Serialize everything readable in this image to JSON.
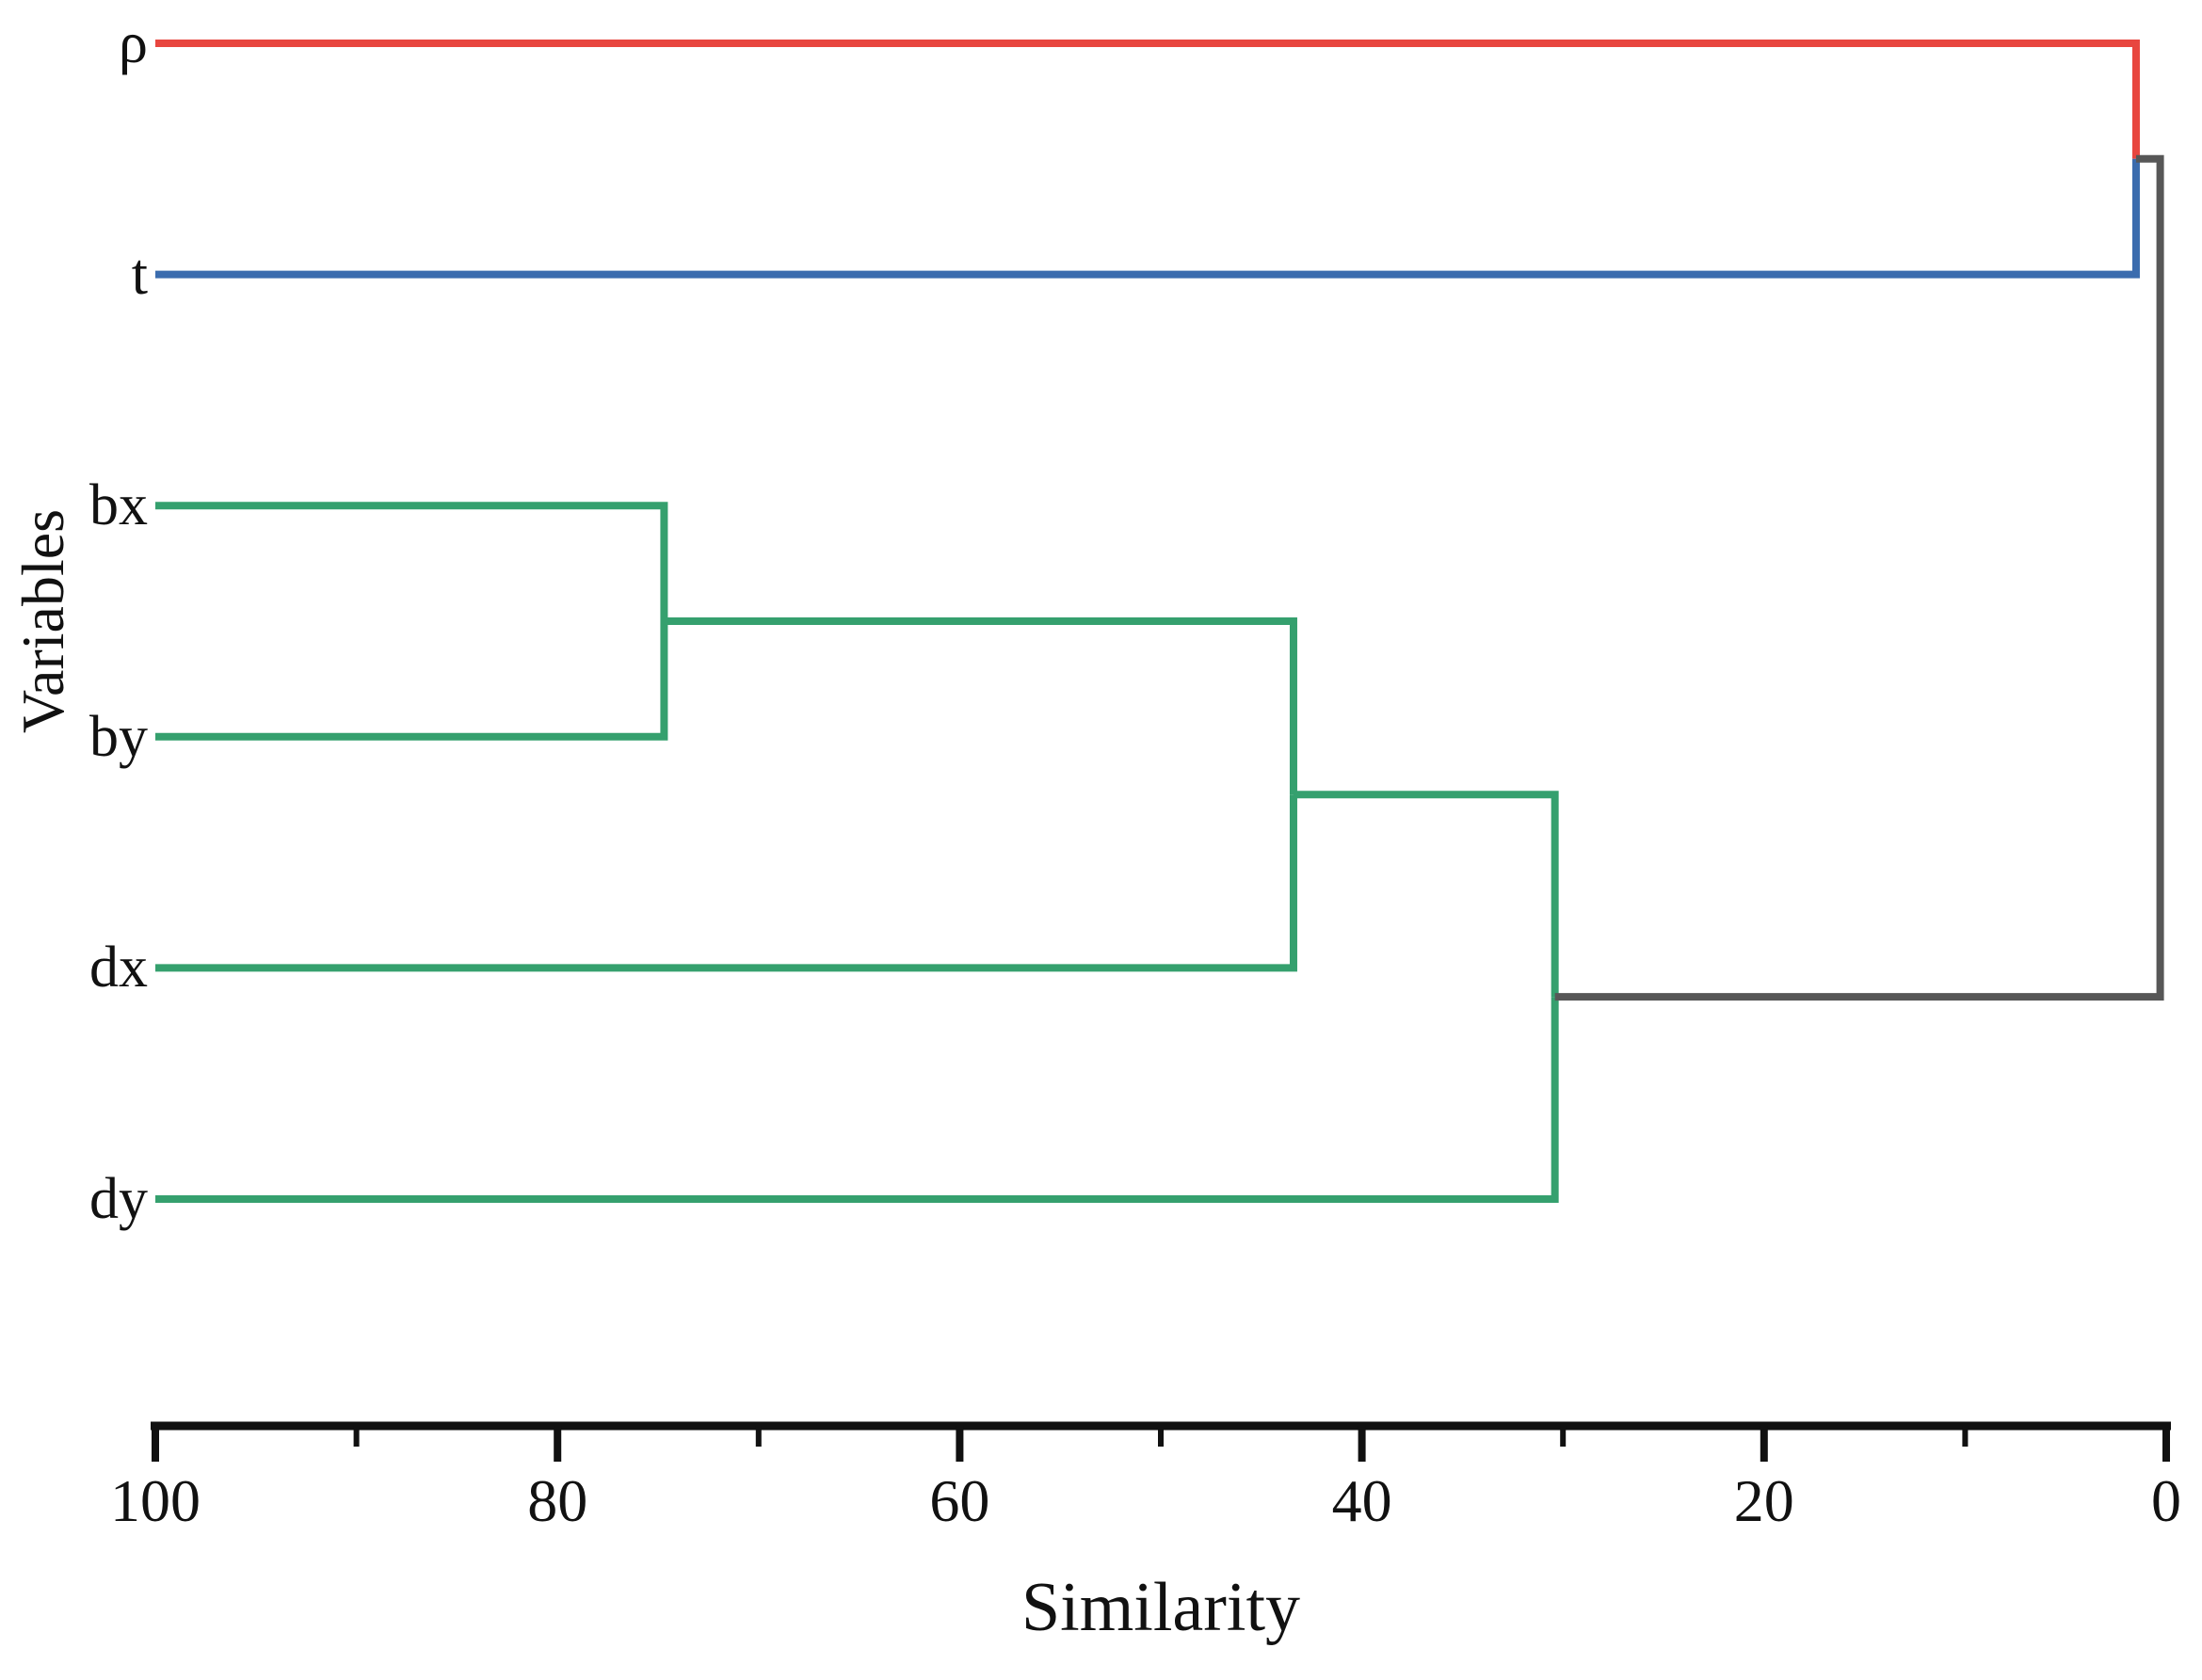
{
  "chart_data": {
    "type": "dendrogram",
    "orientation": "horizontal, leaves on left, similarity decreasing left(100) to right(0)",
    "xlabel": "Similarity",
    "ylabel": "Variables",
    "x_axis": {
      "min": 0,
      "max": 100,
      "reversed": true,
      "major_ticks": [
        100,
        80,
        60,
        40,
        20,
        0
      ],
      "major_tick_labels": [
        "100",
        "80",
        "60",
        "40",
        "20",
        "0"
      ],
      "minor_ticks": [
        90,
        70,
        50,
        30,
        10
      ]
    },
    "leaves": [
      {
        "id": "rho",
        "label": "ρ",
        "color": "red"
      },
      {
        "id": "t",
        "label": "t",
        "color": "blue"
      },
      {
        "id": "bx",
        "label": "bx",
        "color": "green"
      },
      {
        "id": "by",
        "label": "by",
        "color": "green"
      },
      {
        "id": "dx",
        "label": "dx",
        "color": "green"
      },
      {
        "id": "dy",
        "label": "dy",
        "color": "green"
      }
    ],
    "merges": [
      {
        "id": "m1",
        "children": [
          "bx",
          "by"
        ],
        "similarity": 74.7,
        "color": "green"
      },
      {
        "id": "m2",
        "children": [
          "m1",
          "dx"
        ],
        "similarity": 43.4,
        "color": "green"
      },
      {
        "id": "m3",
        "children": [
          "m2",
          "dy"
        ],
        "similarity": 30.4,
        "color": "gray"
      },
      {
        "id": "m4",
        "children": [
          "rho",
          "t"
        ],
        "similarity": 1.5,
        "color": "gray"
      },
      {
        "id": "m5",
        "children": [
          "m4",
          "m3"
        ],
        "similarity": 0.3,
        "color": "gray"
      }
    ],
    "colors": {
      "red": "#e8463f",
      "blue": "#3b6cae",
      "green": "#35a06e",
      "gray": "#575757",
      "axis": "#111111"
    }
  }
}
